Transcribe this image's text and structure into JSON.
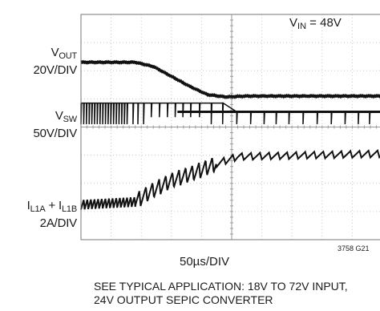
{
  "chart_data": {
    "type": "line",
    "plot_kind": "oscilloscope_waveform",
    "grid": {
      "divisions_x": 10,
      "divisions_y": 8,
      "visible": true
    },
    "conditions": {
      "vin_label": "V",
      "vin_sub": "IN",
      "vin_value": " = 48V"
    },
    "time_scale": "50µs/DIV",
    "figure_id": "3758 G21",
    "series": [
      {
        "label_main": "V",
        "label_sub": "OUT",
        "label_line2": "20V/DIV",
        "description": "Output voltage: steady, falls during transient, settles lower",
        "x_div": [
          0,
          1.8,
          2.4,
          3.0,
          3.6,
          4.2,
          4.8,
          5.5,
          10
        ],
        "y_div": [
          6.3,
          6.3,
          6.15,
          5.8,
          5.45,
          5.15,
          5.07,
          5.1,
          5.1
        ]
      },
      {
        "label_main": "V",
        "label_sub": "SW",
        "label_line2": "50V/DIV",
        "description": "Switch node: dense switching burst that sparsifies as it settles",
        "top_div": 4.85,
        "bottom_div": 4.1,
        "pulse_spacing_div": [
          0.09,
          0.35
        ]
      },
      {
        "label_main": "I",
        "label_sub": "L1A",
        "mid_text": " + I",
        "label_sub2": "L1B",
        "label_line2": "2A/DIV",
        "description": "Inductor current: low ripple band rising to a higher sawtooth band",
        "x_div": [
          0,
          1.8,
          2.3,
          3.0,
          3.8,
          4.5,
          5.2,
          10
        ],
        "y_div": [
          1.25,
          1.35,
          1.7,
          2.1,
          2.4,
          2.7,
          2.95,
          3.05
        ]
      }
    ]
  },
  "caption": {
    "line1": "SEE TYPICAL APPLICATION: 18V TO 72V INPUT,",
    "line2": "24V OUTPUT SEPIC CONVERTER"
  }
}
